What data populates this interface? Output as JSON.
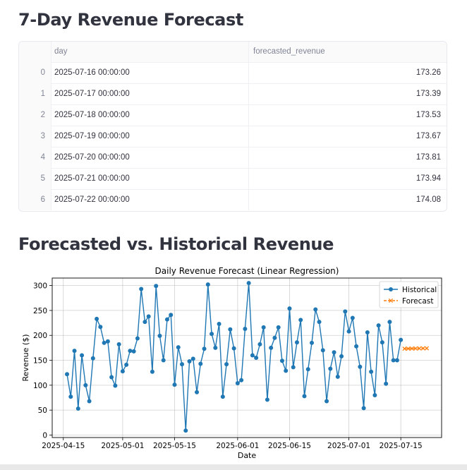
{
  "section1": {
    "title": "7-Day Revenue Forecast"
  },
  "table": {
    "columns": [
      "",
      "day",
      "forecasted_revenue"
    ],
    "rows": [
      {
        "index": "0",
        "day": "2025-07-16 00:00:00",
        "forecasted_revenue": "173.26"
      },
      {
        "index": "1",
        "day": "2025-07-17 00:00:00",
        "forecasted_revenue": "173.39"
      },
      {
        "index": "2",
        "day": "2025-07-18 00:00:00",
        "forecasted_revenue": "173.53"
      },
      {
        "index": "3",
        "day": "2025-07-19 00:00:00",
        "forecasted_revenue": "173.67"
      },
      {
        "index": "4",
        "day": "2025-07-20 00:00:00",
        "forecasted_revenue": "173.81"
      },
      {
        "index": "5",
        "day": "2025-07-21 00:00:00",
        "forecasted_revenue": "173.94"
      },
      {
        "index": "6",
        "day": "2025-07-22 00:00:00",
        "forecasted_revenue": "174.08"
      }
    ]
  },
  "section2": {
    "title": "Forecasted vs. Historical Revenue"
  },
  "chart_data": {
    "type": "line",
    "title": "Daily Revenue Forecast (Linear Regression)",
    "xlabel": "Date",
    "ylabel": "Revenue ($)",
    "ylim": [
      -5,
      315
    ],
    "yticks": [
      0,
      50,
      100,
      150,
      200,
      250,
      300
    ],
    "xticks": [
      "2025-04-15",
      "2025-05-01",
      "2025-05-15",
      "2025-06-01",
      "2025-06-15",
      "2025-07-01",
      "2025-07-15"
    ],
    "xlim": [
      "2025-04-12",
      "2025-07-26"
    ],
    "grid": true,
    "legend_position": "top-right",
    "series": [
      {
        "name": "Historical",
        "color": "#1f77b4",
        "marker": "circle",
        "line": "solid",
        "start_date": "2025-04-16",
        "values": [
          122,
          77,
          169,
          53,
          160,
          100,
          68,
          154,
          233,
          217,
          185,
          188,
          116,
          99,
          182,
          128,
          141,
          169,
          168,
          194,
          293,
          227,
          238,
          127,
          299,
          199,
          150,
          232,
          241,
          101,
          176,
          142,
          9,
          148,
          153,
          86,
          143,
          173,
          302,
          203,
          175,
          223,
          77,
          142,
          212,
          174,
          104,
          110,
          213,
          305,
          160,
          155,
          182,
          216,
          71,
          175,
          195,
          216,
          149,
          129,
          254,
          136,
          186,
          231,
          78,
          132,
          185,
          252,
          227,
          170,
          68,
          133,
          166,
          117,
          158,
          248,
          208,
          235,
          178,
          137,
          54,
          206,
          127,
          80,
          220,
          186,
          103,
          227,
          150,
          150,
          191
        ]
      },
      {
        "name": "Forecast",
        "color": "#ff7f0e",
        "marker": "x",
        "line": "dashed",
        "dates": [
          "2025-07-16",
          "2025-07-17",
          "2025-07-18",
          "2025-07-19",
          "2025-07-20",
          "2025-07-21",
          "2025-07-22"
        ],
        "values": [
          173.26,
          173.39,
          173.53,
          173.67,
          173.81,
          173.94,
          174.08
        ]
      }
    ]
  }
}
